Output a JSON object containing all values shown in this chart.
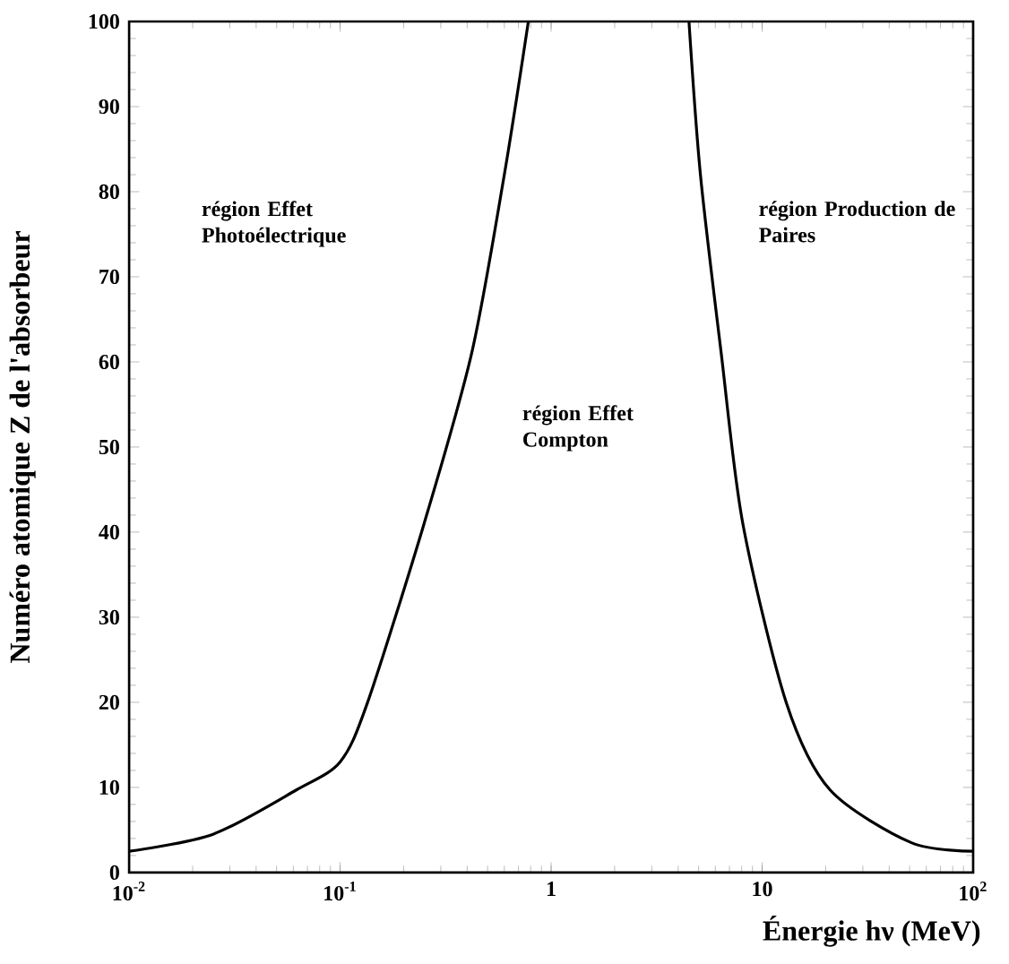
{
  "chart_data": {
    "type": "line",
    "xlabel": "Énergie hν (MeV)",
    "ylabel": "Numéro atomique Z de l'absorbeur",
    "log": "x",
    "grid": false,
    "marker": "none",
    "line_style": "solid",
    "xlim": [
      0.01,
      100
    ],
    "ylim": [
      0,
      100
    ],
    "xticks": [
      {
        "value": 0.01,
        "label": "10$^{-2}$"
      },
      {
        "value": 0.1,
        "label": "10$^{-1}$"
      },
      1,
      10,
      {
        "value": 100,
        "label": "10$^{2}$"
      }
    ],
    "yticks": [
      0,
      10,
      20,
      30,
      40,
      50,
      60,
      70,
      80,
      90,
      100
    ],
    "series": [
      {
        "color": "#000000",
        "x": [
          0.01,
          0.025,
          0.062,
          0.1,
          0.135,
          0.25,
          0.42,
          0.6,
          0.78
        ],
        "values": [
          2.5,
          4.5,
          9.7,
          13,
          20,
          41,
          61,
          82,
          100
        ]
      },
      {
        "color": "#000000",
        "x": [
          4.5,
          5.1,
          6.4,
          8.1,
          13,
          21,
          51,
          100
        ],
        "values": [
          100,
          82,
          61,
          41,
          20,
          9.7,
          3.5,
          2.5
        ]
      }
    ],
    "annotations": [
      "région Effet Photoélectrique",
      "région Effet Compton",
      "région Production de Paires"
    ]
  }
}
